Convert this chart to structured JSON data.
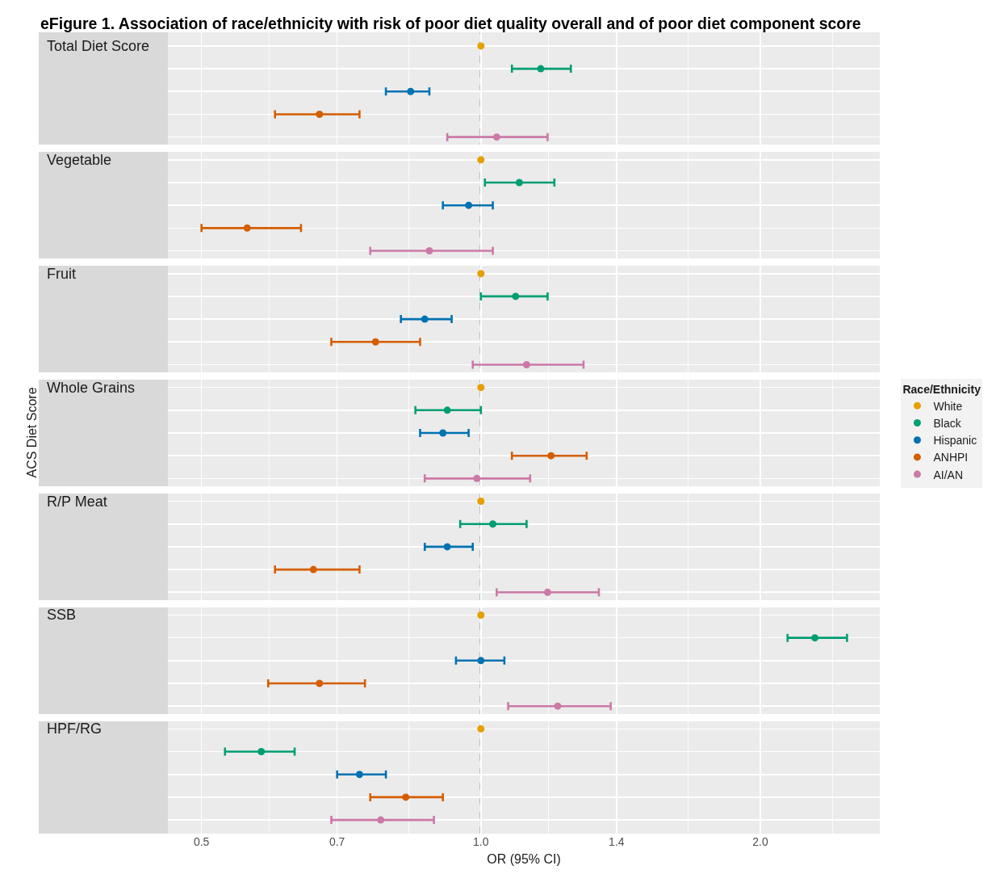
{
  "chart_data": {
    "type": "scatter",
    "title": "eFigure 1. Association of race/ethnicity with risk of poor diet quality overall and of poor diet component score",
    "xlabel": "OR (95% CI)",
    "ylabel": "ACS Diet Score",
    "legend_title": "Race/Ethnicity",
    "legend": "right",
    "orientation": "horizontal",
    "log": "x",
    "categories": [
      "Total Diet Score",
      null,
      null,
      null,
      null,
      "Vegetable",
      null,
      null,
      null,
      null,
      "Fruit",
      null,
      null,
      null,
      null,
      "Whole Grains",
      null,
      null,
      null,
      null,
      "R/P Meat",
      null,
      null,
      null,
      null,
      "SSB",
      null,
      null,
      null,
      null,
      "HPF/RG",
      null,
      null,
      null,
      null
    ],
    "xlim": [
      0.46,
      2.69
    ],
    "xticks": [
      0.5,
      0.7,
      {
        "value": 1,
        "label": "1.0"
      },
      1.4,
      {
        "value": 2,
        "label": "2.0"
      }
    ],
    "grid": true,
    "marker": "circle",
    "ref_lines": [
      {
        "axis": "x",
        "value": 1,
        "color": "#000000",
        "line_style": "dashed"
      }
    ],
    "series": [
      {
        "name": "White",
        "color": "#e69f00",
        "values": [
          1,
          null,
          null,
          null,
          null,
          1,
          null,
          null,
          null,
          null,
          1,
          null,
          null,
          null,
          null,
          1,
          null,
          null,
          null,
          null,
          1,
          null,
          null,
          null,
          null,
          1,
          null,
          null,
          null,
          null,
          1,
          null,
          null,
          null,
          null
        ]
      },
      {
        "name": "Black",
        "color": "#009e73",
        "values": [
          null,
          1.16,
          null,
          null,
          null,
          null,
          1.1,
          null,
          null,
          null,
          null,
          1.09,
          null,
          null,
          null,
          null,
          0.92,
          null,
          null,
          null,
          null,
          1.03,
          null,
          null,
          null,
          null,
          2.29,
          null,
          null,
          null,
          null,
          0.58,
          null,
          null,
          null
        ],
        "errors": [
          null,
          [
            1.08,
            1.25
          ],
          null,
          null,
          null,
          null,
          [
            1.01,
            1.2
          ],
          null,
          null,
          null,
          null,
          [
            1.0,
            1.18
          ],
          null,
          null,
          null,
          null,
          [
            0.85,
            1.0
          ],
          null,
          null,
          null,
          null,
          [
            0.95,
            1.12
          ],
          null,
          null,
          null,
          null,
          [
            2.14,
            2.48
          ],
          null,
          null,
          null,
          null,
          [
            0.53,
            0.63
          ],
          null,
          null,
          null
        ]
      },
      {
        "name": "Hispanic",
        "color": "#0072b2",
        "values": [
          null,
          null,
          0.84,
          null,
          null,
          null,
          null,
          0.97,
          null,
          null,
          null,
          null,
          0.87,
          null,
          null,
          null,
          null,
          0.91,
          null,
          null,
          null,
          null,
          0.92,
          null,
          null,
          null,
          null,
          1.0,
          null,
          null,
          null,
          null,
          0.74,
          null,
          null
        ],
        "errors": [
          null,
          null,
          [
            0.79,
            0.88
          ],
          null,
          null,
          null,
          null,
          [
            0.91,
            1.03
          ],
          null,
          null,
          null,
          null,
          [
            0.82,
            0.93
          ],
          null,
          null,
          null,
          null,
          [
            0.86,
            0.97
          ],
          null,
          null,
          null,
          null,
          [
            0.87,
            0.98
          ],
          null,
          null,
          null,
          null,
          [
            0.94,
            1.06
          ],
          null,
          null,
          null,
          null,
          [
            0.7,
            0.79
          ],
          null,
          null
        ]
      },
      {
        "name": "ANHPI",
        "color": "#d55e00",
        "values": [
          null,
          null,
          null,
          0.67,
          null,
          null,
          null,
          null,
          0.56,
          null,
          null,
          null,
          null,
          0.77,
          null,
          null,
          null,
          null,
          1.19,
          null,
          null,
          null,
          null,
          0.66,
          null,
          null,
          null,
          null,
          0.67,
          null,
          null,
          null,
          null,
          0.83,
          null
        ],
        "errors": [
          null,
          null,
          null,
          [
            0.6,
            0.74
          ],
          null,
          null,
          null,
          null,
          [
            0.5,
            0.64
          ],
          null,
          null,
          null,
          null,
          [
            0.69,
            0.86
          ],
          null,
          null,
          null,
          null,
          [
            1.08,
            1.3
          ],
          null,
          null,
          null,
          null,
          [
            0.6,
            0.74
          ],
          null,
          null,
          null,
          null,
          [
            0.59,
            0.75
          ],
          null,
          null,
          null,
          null,
          [
            0.76,
            0.91
          ],
          null
        ]
      },
      {
        "name": "AI/AN",
        "color": "#cc79a7",
        "values": [
          null,
          null,
          null,
          null,
          1.04,
          null,
          null,
          null,
          null,
          0.88,
          null,
          null,
          null,
          null,
          1.12,
          null,
          null,
          null,
          null,
          0.99,
          null,
          null,
          null,
          null,
          1.18,
          null,
          null,
          null,
          null,
          1.21,
          null,
          null,
          null,
          null,
          0.78
        ],
        "errors": [
          null,
          null,
          null,
          null,
          [
            0.92,
            1.18
          ],
          null,
          null,
          null,
          null,
          [
            0.76,
            1.03
          ],
          null,
          null,
          null,
          null,
          [
            0.98,
            1.29
          ],
          null,
          null,
          null,
          null,
          [
            0.87,
            1.13
          ],
          null,
          null,
          null,
          null,
          [
            1.04,
            1.34
          ],
          null,
          null,
          null,
          null,
          [
            1.07,
            1.38
          ],
          null,
          null,
          null,
          null,
          [
            0.69,
            0.89
          ]
        ]
      }
    ]
  }
}
